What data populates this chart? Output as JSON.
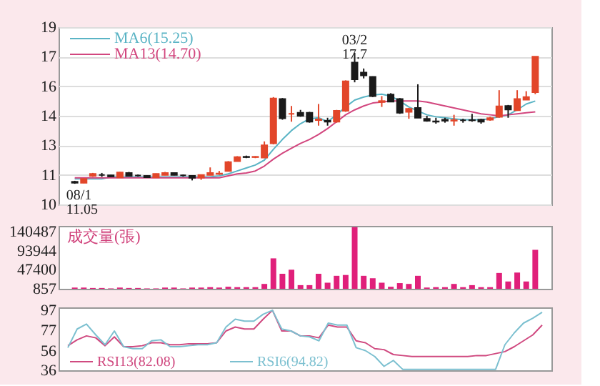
{
  "chart_data": [
    {
      "type": "candlestick",
      "categories": [
        null,
        null,
        null,
        null,
        null,
        null,
        null,
        null,
        null,
        null,
        null,
        null,
        null,
        null,
        null,
        null,
        null,
        null,
        null,
        null,
        null,
        null,
        null,
        null,
        null,
        null,
        null,
        null,
        null,
        null,
        null,
        null,
        null,
        null,
        null,
        null,
        null,
        null,
        null,
        null,
        null,
        null,
        null,
        null,
        null,
        null,
        null,
        null,
        null,
        null,
        null,
        null
      ],
      "ohlc": [
        [
          11.15,
          11.2,
          11.05,
          11.1
        ],
        [
          11.1,
          11.32,
          11.08,
          11.3
        ],
        [
          11.45,
          11.6,
          11.4,
          11.55
        ],
        [
          11.5,
          11.6,
          11.4,
          11.5
        ],
        [
          11.48,
          11.5,
          11.4,
          11.42
        ],
        [
          11.37,
          11.65,
          11.35,
          11.62
        ],
        [
          11.6,
          11.65,
          11.43,
          11.45
        ],
        [
          11.47,
          11.52,
          11.42,
          11.47
        ],
        [
          11.45,
          11.47,
          11.36,
          11.38
        ],
        [
          11.37,
          11.57,
          11.35,
          11.55
        ],
        [
          11.5,
          11.65,
          11.48,
          11.6
        ],
        [
          11.6,
          11.63,
          11.48,
          11.5
        ],
        [
          11.48,
          11.52,
          11.42,
          11.48
        ],
        [
          11.45,
          11.48,
          11.22,
          11.35
        ],
        [
          11.36,
          11.52,
          11.25,
          11.5
        ],
        [
          11.5,
          11.88,
          11.48,
          11.6
        ],
        [
          11.55,
          11.7,
          11.5,
          11.57
        ],
        [
          11.7,
          12.2,
          11.68,
          12.15
        ],
        [
          12.2,
          12.45,
          12.18,
          12.4
        ],
        [
          12.42,
          12.48,
          12.35,
          12.4
        ],
        [
          12.4,
          12.45,
          12.35,
          12.42
        ],
        [
          12.38,
          13.2,
          12.35,
          13.0
        ],
        [
          13.1,
          15.45,
          13.05,
          15.38
        ],
        [
          15.35,
          15.4,
          14.3,
          14.37
        ],
        [
          14.6,
          15.0,
          14.2,
          14.6
        ],
        [
          14.65,
          14.8,
          14.45,
          14.5
        ],
        [
          14.65,
          14.7,
          14.15,
          14.2
        ],
        [
          14.28,
          15.1,
          14.0,
          14.32
        ],
        [
          14.25,
          14.4,
          14.0,
          14.2
        ],
        [
          14.2,
          14.8,
          14.15,
          14.75
        ],
        [
          14.75,
          16.3,
          14.7,
          16.25
        ],
        [
          17.2,
          17.7,
          16.2,
          16.35
        ],
        [
          16.7,
          16.9,
          16.4,
          16.55
        ],
        [
          16.48,
          16.5,
          15.45,
          15.5
        ],
        [
          15.2,
          15.5,
          14.95,
          15.25
        ],
        [
          15.58,
          15.65,
          15.2,
          15.22
        ],
        [
          15.35,
          15.4,
          14.6,
          14.65
        ],
        [
          14.7,
          14.9,
          14.35,
          14.85
        ],
        [
          14.9,
          16.1,
          14.4,
          14.4
        ],
        [
          14.35,
          14.5,
          14.2,
          14.25
        ],
        [
          14.22,
          14.4,
          14.1,
          14.2
        ],
        [
          14.3,
          14.4,
          14.15,
          14.25
        ],
        [
          14.25,
          14.55,
          14.0,
          14.28
        ],
        [
          14.27,
          14.35,
          14.15,
          14.27
        ],
        [
          14.28,
          14.6,
          14.2,
          14.27
        ],
        [
          14.3,
          14.35,
          14.1,
          14.2
        ],
        [
          14.3,
          14.45,
          14.25,
          14.38
        ],
        [
          14.45,
          15.8,
          14.4,
          14.98
        ],
        [
          15.0,
          15.05,
          14.4,
          14.82
        ],
        [
          14.78,
          15.8,
          14.75,
          15.35
        ],
        [
          15.32,
          15.75,
          15.3,
          15.45
        ],
        [
          15.7,
          17.5,
          15.6,
          17.5
        ]
      ],
      "colors": [
        "#1a1a1a",
        "#e2462a",
        "#e2462a",
        "#1a1a1a",
        "#1a1a1a",
        "#e2462a",
        "#1a1a1a",
        "#1a1a1a",
        "#1a1a1a",
        "#e2462a",
        "#e2462a",
        "#1a1a1a",
        "#1a1a1a",
        "#1a1a1a",
        "#e2462a",
        "#e2462a",
        "#e2462a",
        "#e2462a",
        "#e2462a",
        "#1a1a1a",
        "#e2462a",
        "#e2462a",
        "#e2462a",
        "#1a1a1a",
        "#e2462a",
        "#1a1a1a",
        "#1a1a1a",
        "#e2462a",
        "#1a1a1a",
        "#e2462a",
        "#e2462a",
        "#1a1a1a",
        "#1a1a1a",
        "#1a1a1a",
        "#e2462a",
        "#1a1a1a",
        "#1a1a1a",
        "#e2462a",
        "#1a1a1a",
        "#1a1a1a",
        "#1a1a1a",
        "#1a1a1a",
        "#e2462a",
        "#1a1a1a",
        "#1a1a1a",
        "#1a1a1a",
        "#e2462a",
        "#e2462a",
        "#1a1a1a",
        "#e2462a",
        "#e2462a",
        "#e2462a"
      ],
      "series": [
        {
          "name": "MA6(15.25)",
          "type": "line",
          "color": "#5ab4c5",
          "values": [
            11.3,
            11.3,
            11.3,
            11.3,
            11.4,
            11.4,
            11.4,
            11.4,
            11.4,
            11.4,
            11.4,
            11.4,
            11.4,
            11.4,
            11.4,
            11.4,
            11.45,
            11.55,
            11.7,
            11.85,
            12.0,
            12.25,
            12.8,
            13.3,
            13.75,
            14.1,
            14.35,
            14.4,
            14.2,
            14.55,
            14.95,
            15.3,
            15.45,
            15.55,
            15.6,
            15.5,
            15.25,
            14.95,
            14.75,
            14.55,
            14.45,
            14.4,
            14.35,
            14.3,
            14.3,
            14.3,
            14.35,
            14.45,
            14.55,
            14.8,
            15.1,
            15.25
          ]
        },
        {
          "name": "MA13(14.70)",
          "type": "line",
          "color": "#d2467e",
          "values": [
            11.35,
            11.35,
            11.35,
            11.35,
            11.35,
            11.35,
            11.35,
            11.35,
            11.35,
            11.35,
            11.35,
            11.35,
            11.35,
            11.35,
            11.35,
            11.35,
            11.35,
            11.45,
            11.55,
            11.6,
            11.7,
            11.95,
            12.3,
            12.6,
            12.85,
            13.1,
            13.3,
            13.55,
            13.85,
            14.2,
            14.55,
            14.8,
            15.0,
            15.15,
            15.2,
            15.25,
            15.25,
            15.25,
            15.25,
            15.2,
            15.1,
            15.0,
            14.9,
            14.8,
            14.7,
            14.6,
            14.55,
            14.5,
            14.55,
            14.6,
            14.65,
            14.7
          ]
        }
      ],
      "ylim": [
        10,
        19
      ],
      "yticks": [
        10,
        {
          "value": 11.5,
          "label": "11"
        },
        13,
        {
          "value": 14.5,
          "label": "14"
        },
        16,
        {
          "value": 17.5,
          "label": "17"
        },
        19
      ],
      "grid": "y",
      "legend": "top left",
      "tick_labels": "y",
      "annotations": [
        {
          "text": "03/2\n17.7",
          "y": 17.7
        },
        {
          "text": "08/1\n11.05",
          "y": 11.05
        }
      ]
    },
    {
      "type": "bar",
      "categories": [
        null,
        null,
        null,
        null,
        null,
        null,
        null,
        null,
        null,
        null,
        null,
        null,
        null,
        null,
        null,
        null,
        null,
        null,
        null,
        null,
        null,
        null,
        null,
        null,
        null,
        null,
        null,
        null,
        null,
        null,
        null,
        null,
        null,
        null,
        null,
        null,
        null,
        null,
        null,
        null,
        null,
        null,
        null,
        null,
        null,
        null,
        null,
        null,
        null,
        null,
        null,
        null
      ],
      "values": [
        3000,
        3000,
        2000,
        2000,
        1000,
        3000,
        2000,
        2000,
        1000,
        1000,
        3000,
        3000,
        1000,
        3000,
        3000,
        4000,
        3000,
        5000,
        4000,
        4000,
        4000,
        12000,
        75000,
        37000,
        47000,
        9000,
        9000,
        37000,
        15000,
        32000,
        34000,
        152000,
        32000,
        26000,
        15000,
        5000,
        14000,
        12000,
        32000,
        3000,
        4000,
        4000,
        12000,
        4000,
        9000,
        4000,
        4000,
        39000,
        18000,
        40000,
        18000,
        96000
      ],
      "color": "#e0207a",
      "ylim": [
        0,
        155000
      ],
      "yticks": [
        857,
        {
          "value": 47400,
          "label": "47400"
        },
        {
          "value": 93944,
          "label": "93944"
        },
        {
          "value": 140487,
          "label": "140487"
        }
      ],
      "tick_labels": "y",
      "annotations": [
        "成交量(張)"
      ]
    },
    {
      "type": "line",
      "categories": [
        null,
        null,
        null,
        null,
        null,
        null,
        null,
        null,
        null,
        null,
        null,
        null,
        null,
        null,
        null,
        null,
        null,
        null,
        null,
        null,
        null,
        null,
        null,
        null,
        null,
        null,
        null,
        null,
        null,
        null,
        null,
        null,
        null,
        null,
        null,
        null,
        null,
        null,
        null,
        null,
        null,
        null,
        null,
        null,
        null,
        null,
        null,
        null,
        null,
        null,
        null,
        null
      ],
      "series": [
        {
          "name": "RSI13(82.08)",
          "color": "#d04a80",
          "values": [
            61,
            67,
            71,
            69,
            61,
            70,
            60,
            60,
            61,
            64,
            64,
            62,
            62,
            63,
            63,
            63,
            64,
            76,
            80,
            78,
            78,
            88,
            97,
            76,
            76,
            71,
            71,
            69,
            82,
            80,
            80,
            66,
            64,
            58,
            57,
            52,
            51,
            50,
            50,
            50,
            50,
            50,
            50,
            50,
            51,
            51,
            53,
            55,
            60,
            66,
            72,
            82
          ]
        },
        {
          "name": "RSI6(94.82)",
          "color": "#7cc0d0",
          "values": [
            59,
            78,
            83,
            72,
            62,
            76,
            60,
            58,
            58,
            66,
            67,
            60,
            60,
            61,
            62,
            62,
            64,
            80,
            88,
            86,
            86,
            93,
            97,
            78,
            76,
            71,
            70,
            66,
            84,
            82,
            82,
            59,
            56,
            50,
            40,
            46,
            37,
            37,
            37,
            37,
            37,
            37,
            37,
            37,
            37,
            37,
            37,
            62,
            74,
            84,
            89,
            95
          ]
        }
      ],
      "ylim": [
        36,
        100
      ],
      "yticks": [
        36,
        56,
        77,
        97
      ],
      "tick_labels": "y",
      "legend": "bottom left"
    }
  ]
}
